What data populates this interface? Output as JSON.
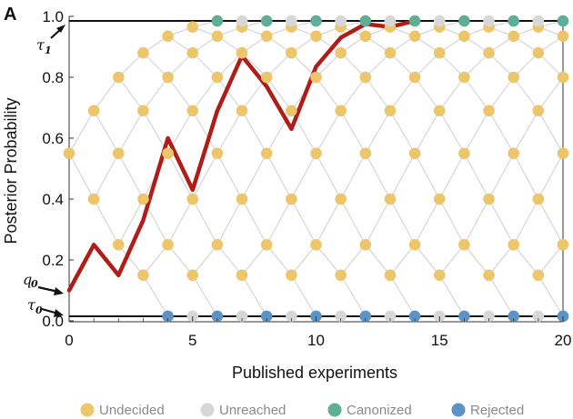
{
  "panel_label": "A",
  "colors": {
    "undecided": "#EDC56A",
    "unreached": "#D7D7D7",
    "canonized": "#5FAE95",
    "rejected": "#5C93C7",
    "path": "#B01C17",
    "lattice": "#CFCFCF",
    "threshold": "#111111"
  },
  "chart_data": {
    "type": "scatter",
    "title": "",
    "xlabel": "Published experiments",
    "ylabel": "Posterior Probability",
    "xlim": [
      0,
      20
    ],
    "ylim": [
      0,
      1
    ],
    "x_ticks": [
      "0",
      "5",
      "10",
      "15",
      "20"
    ],
    "y_ticks": [
      "0.0",
      "0.2",
      "0.4",
      "0.6",
      "0.8",
      "1.0"
    ],
    "thresholds": {
      "tau1": 0.985,
      "tau0": 0.015,
      "q0": 0.1
    },
    "node_levels": [
      -10,
      -9,
      -8,
      -7,
      -6,
      -5,
      -4,
      -3,
      -2,
      -1,
      0,
      1,
      2,
      3,
      4,
      5,
      6,
      7,
      8,
      9,
      10
    ],
    "node_values": [
      0.0013,
      0.0027,
      0.0054,
      0.011,
      0.021,
      0.041,
      0.08,
      0.15,
      0.25,
      0.4,
      0.55,
      0.69,
      0.8,
      0.88,
      0.935,
      0.965,
      0.982,
      0.99,
      0.995,
      0.997,
      0.999
    ],
    "absorb_levels": {
      "canonized": 6,
      "rejected": -4
    },
    "path": {
      "x": [
        0,
        1,
        2,
        3,
        4,
        5,
        6,
        7,
        8,
        9,
        10,
        11,
        12,
        13,
        14
      ],
      "y": [
        0.1,
        0.25,
        0.15,
        0.33,
        0.6,
        0.43,
        0.69,
        0.87,
        0.77,
        0.63,
        0.835,
        0.93,
        0.975,
        0.965,
        0.985
      ]
    },
    "legend": [
      {
        "label": "Undecided",
        "key": "undecided"
      },
      {
        "label": "Unreached",
        "key": "unreached"
      },
      {
        "label": "Canonized",
        "key": "canonized"
      },
      {
        "label": "Rejected",
        "key": "rejected"
      }
    ],
    "legend_position": "bottom",
    "grid": false
  }
}
